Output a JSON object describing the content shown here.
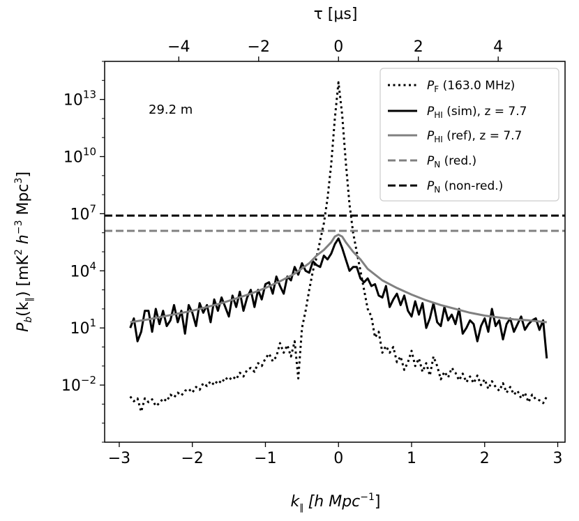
{
  "chart_data": {
    "type": "line",
    "x_axis": {
      "label_base": "k",
      "label_sub": "∥",
      "label_unit": "[h Mpc",
      "label_sup": "−1",
      "label_close": "]",
      "range": [
        -3.2,
        3.1
      ],
      "ticks": [
        -3,
        -2,
        -1,
        0,
        1,
        2,
        3
      ],
      "tick_labels": [
        "−3",
        "−2",
        "−1",
        "0",
        "1",
        "2",
        "3"
      ]
    },
    "top_axis": {
      "label": "τ [μs]",
      "ticks_tau": [
        -4,
        -2,
        0,
        2,
        4
      ],
      "tick_labels": [
        "−4",
        "−2",
        "0",
        "2",
        "4"
      ],
      "k_per_us": 0.5463
    },
    "y_axis": {
      "label": "P_b(k∥) [mK² h⁻³ Mpc³]",
      "label_parts": {
        "p": "P",
        "b": "b",
        "mid": "(k",
        "par": "∥",
        "unit": ") [mK",
        "two": "2",
        "h": " h",
        "m3": "−3",
        "mpc": " Mpc",
        "three": "3",
        "close": "]"
      },
      "scale": "log",
      "log_range": [
        -5.0,
        15.0
      ],
      "ticks_log": [
        -2,
        1,
        4,
        7,
        10,
        13
      ],
      "tick_labels": [
        {
          "base": "10",
          "exp": "−2"
        },
        {
          "base": "10",
          "exp": "1"
        },
        {
          "base": "10",
          "exp": "4"
        },
        {
          "base": "10",
          "exp": "7"
        },
        {
          "base": "10",
          "exp": "10"
        },
        {
          "base": "10",
          "exp": "13"
        }
      ]
    },
    "annotation": "29.2 m",
    "series": [
      {
        "name": "P_F (163.0 MHz)",
        "legend": {
          "main": "P",
          "sub": "F",
          "rest": " (163.0 MHz)"
        },
        "style": "dotted",
        "color": "#000000",
        "x": [
          -2.85,
          -2.8,
          -2.75,
          -2.7,
          -2.65,
          -2.6,
          -2.55,
          -2.5,
          -2.45,
          -2.4,
          -2.35,
          -2.3,
          -2.25,
          -2.2,
          -2.15,
          -2.1,
          -2.05,
          -2.0,
          -1.95,
          -1.9,
          -1.85,
          -1.8,
          -1.75,
          -1.7,
          -1.65,
          -1.6,
          -1.55,
          -1.5,
          -1.45,
          -1.4,
          -1.35,
          -1.3,
          -1.25,
          -1.2,
          -1.15,
          -1.1,
          -1.05,
          -1.0,
          -0.95,
          -0.9,
          -0.85,
          -0.8,
          -0.75,
          -0.7,
          -0.65,
          -0.6,
          -0.55,
          -0.5,
          -0.45,
          -0.4,
          -0.35,
          -0.3,
          -0.25,
          -0.2,
          -0.15,
          -0.1,
          -0.05,
          0.0,
          0.05,
          0.1,
          0.15,
          0.2,
          0.25,
          0.3,
          0.35,
          0.4,
          0.45,
          0.5,
          0.55,
          0.6,
          0.65,
          0.7,
          0.75,
          0.8,
          0.85,
          0.9,
          0.95,
          1.0,
          1.05,
          1.1,
          1.15,
          1.2,
          1.25,
          1.3,
          1.35,
          1.4,
          1.45,
          1.5,
          1.55,
          1.6,
          1.65,
          1.7,
          1.75,
          1.8,
          1.85,
          1.9,
          1.95,
          2.0,
          2.05,
          2.1,
          2.15,
          2.2,
          2.25,
          2.3,
          2.35,
          2.4,
          2.45,
          2.5,
          2.55,
          2.6,
          2.65,
          2.7,
          2.75,
          2.8,
          2.85
        ],
        "log_values": [
          -2.6,
          -2.85,
          -2.7,
          -3.4,
          -2.7,
          -2.9,
          -2.75,
          -3.1,
          -2.95,
          -2.7,
          -2.85,
          -2.5,
          -2.65,
          -2.4,
          -2.55,
          -2.3,
          -2.2,
          -2.4,
          -2.1,
          -2.25,
          -1.9,
          -2.05,
          -1.8,
          -2.0,
          -1.75,
          -1.9,
          -1.6,
          -1.75,
          -1.55,
          -1.7,
          -1.35,
          -1.55,
          -1.2,
          -1.1,
          -1.3,
          -0.85,
          -1.0,
          -0.6,
          -0.35,
          -0.75,
          -0.5,
          0.2,
          -0.3,
          0.1,
          -0.5,
          0.3,
          -1.65,
          1.0,
          1.9,
          3.0,
          4.0,
          4.7,
          5.6,
          6.5,
          7.8,
          9.6,
          12.0,
          13.9,
          12.2,
          9.7,
          7.5,
          6.0,
          5.0,
          4.0,
          3.0,
          2.0,
          1.6,
          0.5,
          0.8,
          -0.3,
          0.05,
          -0.3,
          0.0,
          -0.8,
          -0.5,
          -1.2,
          -0.8,
          -0.2,
          -1.0,
          -0.6,
          -1.3,
          -0.85,
          -1.5,
          -0.5,
          -1.0,
          -1.7,
          -1.3,
          -1.6,
          -1.1,
          -1.35,
          -1.75,
          -1.4,
          -1.85,
          -1.55,
          -1.9,
          -1.5,
          -2.0,
          -1.7,
          -2.2,
          -1.8,
          -2.1,
          -2.3,
          -1.9,
          -2.4,
          -2.1,
          -2.5,
          -2.3,
          -2.7,
          -2.4,
          -2.9,
          -2.5,
          -2.75,
          -2.8,
          -2.95,
          -2.6,
          -2.8,
          -2.65
        ]
      },
      {
        "name": "P_HI (sim), z = 7.7",
        "legend": {
          "main": "P",
          "sub": "HI",
          "rest": " (sim), z = 7.7"
        },
        "style": "solid",
        "color": "#000000",
        "x": [
          -2.85,
          -2.8,
          -2.75,
          -2.7,
          -2.65,
          -2.6,
          -2.55,
          -2.5,
          -2.45,
          -2.4,
          -2.35,
          -2.3,
          -2.25,
          -2.2,
          -2.15,
          -2.1,
          -2.05,
          -2.0,
          -1.95,
          -1.9,
          -1.85,
          -1.8,
          -1.75,
          -1.7,
          -1.65,
          -1.6,
          -1.55,
          -1.5,
          -1.45,
          -1.4,
          -1.35,
          -1.3,
          -1.25,
          -1.2,
          -1.15,
          -1.1,
          -1.05,
          -1.0,
          -0.95,
          -0.9,
          -0.85,
          -0.8,
          -0.75,
          -0.7,
          -0.65,
          -0.6,
          -0.55,
          -0.5,
          -0.45,
          -0.4,
          -0.35,
          -0.3,
          -0.25,
          -0.2,
          -0.15,
          -0.1,
          -0.05,
          0.0,
          0.05,
          0.1,
          0.15,
          0.2,
          0.25,
          0.3,
          0.35,
          0.4,
          0.45,
          0.5,
          0.55,
          0.6,
          0.65,
          0.7,
          0.75,
          0.8,
          0.85,
          0.9,
          0.95,
          1.0,
          1.05,
          1.1,
          1.15,
          1.2,
          1.25,
          1.3,
          1.35,
          1.4,
          1.45,
          1.5,
          1.55,
          1.6,
          1.65,
          1.7,
          1.75,
          1.8,
          1.85,
          1.9,
          1.95,
          2.0,
          2.05,
          2.1,
          2.15,
          2.2,
          2.25,
          2.3,
          2.35,
          2.4,
          2.45,
          2.5,
          2.55,
          2.6,
          2.65,
          2.7,
          2.75,
          2.8,
          2.85
        ],
        "log_values": [
          1.0,
          1.5,
          0.3,
          0.8,
          1.9,
          1.9,
          0.8,
          2.0,
          1.2,
          1.9,
          1.1,
          1.4,
          2.2,
          1.3,
          1.9,
          0.7,
          2.2,
          1.8,
          1.1,
          2.3,
          1.8,
          2.2,
          1.3,
          2.5,
          1.9,
          2.6,
          2.1,
          1.6,
          2.7,
          2.1,
          2.9,
          1.9,
          2.6,
          3.0,
          2.1,
          3.0,
          2.5,
          3.3,
          3.4,
          2.8,
          3.7,
          3.2,
          2.8,
          3.7,
          3.5,
          4.2,
          3.8,
          4.4,
          4.0,
          3.9,
          4.5,
          4.3,
          4.2,
          4.8,
          4.6,
          4.9,
          5.4,
          5.7,
          5.2,
          4.6,
          4.0,
          4.2,
          4.2,
          3.6,
          3.4,
          3.6,
          3.2,
          3.3,
          2.7,
          2.6,
          3.2,
          2.1,
          2.5,
          2.8,
          2.2,
          2.7,
          1.9,
          1.6,
          2.4,
          1.7,
          2.3,
          1.0,
          1.5,
          2.3,
          1.3,
          1.1,
          2.1,
          1.4,
          1.7,
          1.2,
          2.0,
          0.7,
          1.0,
          1.4,
          1.2,
          0.3,
          1.1,
          1.5,
          0.8,
          2.0,
          1.1,
          1.4,
          0.4,
          1.2,
          1.5,
          0.8,
          1.2,
          1.6,
          0.9,
          1.2,
          1.4,
          1.5,
          0.9,
          1.4,
          -0.6
        ]
      },
      {
        "name": "P_HI (ref), z = 7.7",
        "legend": {
          "main": "P",
          "sub": "HI",
          "rest": " (ref), z = 7.7"
        },
        "style": "solid",
        "color": "#808080",
        "x": [
          -2.85,
          -2.6,
          -2.4,
          -2.2,
          -2.0,
          -1.8,
          -1.6,
          -1.4,
          -1.2,
          -1.0,
          -0.8,
          -0.6,
          -0.4,
          -0.3,
          -0.2,
          -0.1,
          -0.05,
          0.0,
          0.05,
          0.1,
          0.2,
          0.3,
          0.4,
          0.6,
          0.8,
          1.0,
          1.2,
          1.4,
          1.6,
          1.8,
          2.0,
          2.2,
          2.4,
          2.6,
          2.85
        ],
        "log_values": [
          1.3,
          1.45,
          1.6,
          1.75,
          1.9,
          2.1,
          2.3,
          2.55,
          2.8,
          3.1,
          3.45,
          3.85,
          4.4,
          4.8,
          5.1,
          5.5,
          5.8,
          5.9,
          5.8,
          5.5,
          5.0,
          4.6,
          4.1,
          3.5,
          3.1,
          2.75,
          2.45,
          2.2,
          2.0,
          1.8,
          1.65,
          1.55,
          1.45,
          1.4,
          1.3
        ]
      },
      {
        "name": "P_N (red.)",
        "legend": {
          "main": "P",
          "sub": "N",
          "rest": " (red.)"
        },
        "style": "dashed",
        "color": "#808080",
        "constant_log": 6.1
      },
      {
        "name": "P_N (non-red.)",
        "legend": {
          "main": "P",
          "sub": "N",
          "rest": " (non-red.)"
        },
        "style": "dashed",
        "color": "#000000",
        "constant_log": 6.9
      }
    ]
  }
}
